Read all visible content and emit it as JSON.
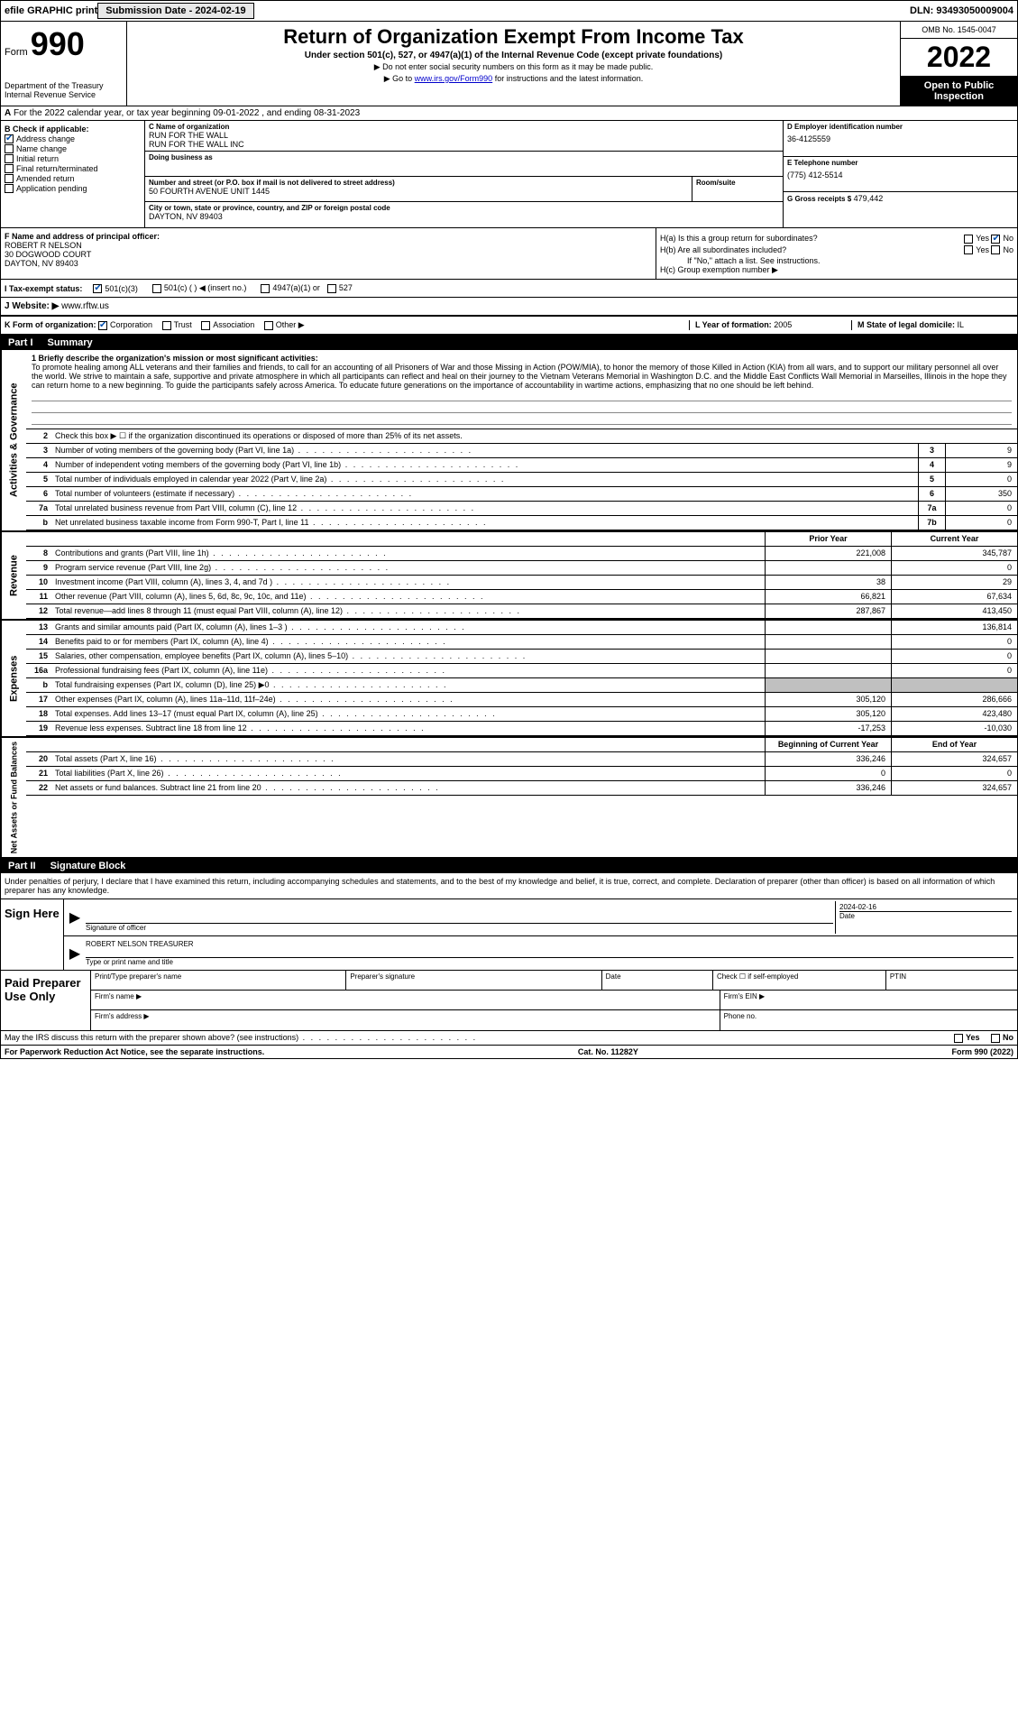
{
  "meta": {
    "dln": "DLN: 93493050009004",
    "submission_date_label": "Submission Date - 2024-02-19",
    "efile_label": "efile GRAPHIC print",
    "omb": "OMB No. 1545-0047",
    "tax_year": "2022",
    "open_public": "Open to Public Inspection",
    "form_label": "Form",
    "form_num": "990",
    "dept": "Department of the Treasury",
    "irs": "Internal Revenue Service",
    "title": "Return of Organization Exempt From Income Tax",
    "subtitle": "Under section 501(c), 527, or 4947(a)(1) of the Internal Revenue Code (except private foundations)",
    "note1": "▶ Do not enter social security numbers on this form as it may be made public.",
    "note2_prefix": "▶ Go to ",
    "note2_link": "www.irs.gov/Form990",
    "note2_suffix": " for instructions and the latest information."
  },
  "row_A": "For the 2022 calendar year, or tax year beginning 09-01-2022   , and ending 08-31-2023",
  "section_B": {
    "header": "B Check if applicable:",
    "items": [
      {
        "label": "Address change",
        "checked": true
      },
      {
        "label": "Name change",
        "checked": false
      },
      {
        "label": "Initial return",
        "checked": false
      },
      {
        "label": "Final return/terminated",
        "checked": false
      },
      {
        "label": "Amended return",
        "checked": false
      },
      {
        "label": "Application pending",
        "checked": false
      }
    ]
  },
  "section_C": {
    "name_label": "C Name of organization",
    "name1": "RUN FOR THE WALL",
    "name2": "RUN FOR THE WALL INC",
    "dba_label": "Doing business as",
    "dba": "",
    "street_label": "Number and street (or P.O. box if mail is not delivered to street address)",
    "street": "50 FOURTH AVENUE UNIT 1445",
    "room_label": "Room/suite",
    "room": "",
    "city_label": "City or town, state or province, country, and ZIP or foreign postal code",
    "city": "DAYTON, NV  89403"
  },
  "section_DE": {
    "d_label": "D Employer identification number",
    "d_value": "36-4125559",
    "e_label": "E Telephone number",
    "e_value": "(775) 412-5514",
    "g_label": "G Gross receipts $",
    "g_value": "479,442"
  },
  "section_F": {
    "label": "F  Name and address of principal officer:",
    "name": "ROBERT R NELSON",
    "addr1": "30 DOGWOOD COURT",
    "addr2": "DAYTON, NV  89403"
  },
  "section_H": {
    "ha_label": "H(a)  Is this a group return for subordinates?",
    "ha_yes": false,
    "ha_no": true,
    "hb_label": "H(b)  Are all subordinates included?",
    "hb_note": "If \"No,\" attach a list. See instructions.",
    "hc_label": "H(c)  Group exemption number ▶"
  },
  "row_I": {
    "label": "I  Tax-exempt status:",
    "opt_501c3": "501(c)(3)",
    "opt_501c": "501(c) (  ) ◀ (insert no.)",
    "opt_4947": "4947(a)(1) or",
    "opt_527": "527",
    "checked_501c3": true
  },
  "row_J": {
    "label": "J  Website: ▶",
    "value": "www.rftw.us"
  },
  "row_K": {
    "label": "K Form of organization:",
    "corp": "Corporation",
    "trust": "Trust",
    "assoc": "Association",
    "other": "Other ▶",
    "corp_checked": true
  },
  "row_L": {
    "label": "L Year of formation:",
    "value": "2005"
  },
  "row_M": {
    "label": "M State of legal domicile:",
    "value": "IL"
  },
  "part1": {
    "num": "Part I",
    "title": "Summary"
  },
  "governance": {
    "side": "Activities & Governance",
    "line1_label": "1   Briefly describe the organization's mission or most significant activities:",
    "mission": "To promote healing among ALL veterans and their families and friends, to call for an accounting of all Prisoners of War and those Missing in Action (POW/MIA), to honor the memory of those Killed in Action (KIA) from all wars, and to support our military personnel all over the world. We strive to maintain a safe, supportive and private atmosphere in which all participants can reflect and heal on their journey to the Vietnam Veterans Memorial in Washington D.C. and the Middle East Conflicts Wall Memorial in Marseilles, Illinois in the hope they can return home to a new beginning. To guide the participants safely across America. To educate future generations on the importance of accountability in wartime actions, emphasizing that no one should be left behind.",
    "line2": "Check this box ▶ ☐  if the organization discontinued its operations or disposed of more than 25% of its net assets.",
    "rows": [
      {
        "n": "3",
        "desc": "Number of voting members of the governing body (Part VI, line 1a)",
        "box": "3",
        "val": "9"
      },
      {
        "n": "4",
        "desc": "Number of independent voting members of the governing body (Part VI, line 1b)",
        "box": "4",
        "val": "9"
      },
      {
        "n": "5",
        "desc": "Total number of individuals employed in calendar year 2022 (Part V, line 2a)",
        "box": "5",
        "val": "0"
      },
      {
        "n": "6",
        "desc": "Total number of volunteers (estimate if necessary)",
        "box": "6",
        "val": "350"
      },
      {
        "n": "7a",
        "desc": "Total unrelated business revenue from Part VIII, column (C), line 12",
        "box": "7a",
        "val": "0"
      },
      {
        "n": "b",
        "desc": "Net unrelated business taxable income from Form 990-T, Part I, line 11",
        "box": "7b",
        "val": "0"
      }
    ]
  },
  "revenue": {
    "side": "Revenue",
    "header_prior": "Prior Year",
    "header_current": "Current Year",
    "rows": [
      {
        "n": "8",
        "desc": "Contributions and grants (Part VIII, line 1h)",
        "prior": "221,008",
        "current": "345,787"
      },
      {
        "n": "9",
        "desc": "Program service revenue (Part VIII, line 2g)",
        "prior": "",
        "current": "0"
      },
      {
        "n": "10",
        "desc": "Investment income (Part VIII, column (A), lines 3, 4, and 7d )",
        "prior": "38",
        "current": "29"
      },
      {
        "n": "11",
        "desc": "Other revenue (Part VIII, column (A), lines 5, 6d, 8c, 9c, 10c, and 11e)",
        "prior": "66,821",
        "current": "67,634"
      },
      {
        "n": "12",
        "desc": "Total revenue—add lines 8 through 11 (must equal Part VIII, column (A), line 12)",
        "prior": "287,867",
        "current": "413,450"
      }
    ]
  },
  "expenses": {
    "side": "Expenses",
    "rows": [
      {
        "n": "13",
        "desc": "Grants and similar amounts paid (Part IX, column (A), lines 1–3 )",
        "prior": "",
        "current": "136,814"
      },
      {
        "n": "14",
        "desc": "Benefits paid to or for members (Part IX, column (A), line 4)",
        "prior": "",
        "current": "0"
      },
      {
        "n": "15",
        "desc": "Salaries, other compensation, employee benefits (Part IX, column (A), lines 5–10)",
        "prior": "",
        "current": "0"
      },
      {
        "n": "16a",
        "desc": "Professional fundraising fees (Part IX, column (A), line 11e)",
        "prior": "",
        "current": "0"
      },
      {
        "n": "b",
        "desc": "Total fundraising expenses (Part IX, column (D), line 25) ▶0",
        "prior": "SHADED",
        "current": "SHADED"
      },
      {
        "n": "17",
        "desc": "Other expenses (Part IX, column (A), lines 11a–11d, 11f–24e)",
        "prior": "305,120",
        "current": "286,666"
      },
      {
        "n": "18",
        "desc": "Total expenses. Add lines 13–17 (must equal Part IX, column (A), line 25)",
        "prior": "305,120",
        "current": "423,480"
      },
      {
        "n": "19",
        "desc": "Revenue less expenses. Subtract line 18 from line 12",
        "prior": "-17,253",
        "current": "-10,030"
      }
    ]
  },
  "netassets": {
    "side": "Net Assets or Fund Balances",
    "header_prior": "Beginning of Current Year",
    "header_current": "End of Year",
    "rows": [
      {
        "n": "20",
        "desc": "Total assets (Part X, line 16)",
        "prior": "336,246",
        "current": "324,657"
      },
      {
        "n": "21",
        "desc": "Total liabilities (Part X, line 26)",
        "prior": "0",
        "current": "0"
      },
      {
        "n": "22",
        "desc": "Net assets or fund balances. Subtract line 21 from line 20",
        "prior": "336,246",
        "current": "324,657"
      }
    ]
  },
  "part2": {
    "num": "Part II",
    "title": "Signature Block",
    "declaration": "Under penalties of perjury, I declare that I have examined this return, including accompanying schedules and statements, and to the best of my knowledge and belief, it is true, correct, and complete. Declaration of preparer (other than officer) is based on all information of which preparer has any knowledge."
  },
  "sign": {
    "left": "Sign Here",
    "sig_label": "Signature of officer",
    "date_label": "Date",
    "date_value": "2024-02-16",
    "name_value": "ROBERT NELSON  TREASURER",
    "name_label": "Type or print name and title"
  },
  "preparer": {
    "left": "Paid Preparer Use Only",
    "h_name": "Print/Type preparer's name",
    "h_sig": "Preparer's signature",
    "h_date": "Date",
    "h_check": "Check ☐ if self-employed",
    "h_ptin": "PTIN",
    "firm_name": "Firm's name    ▶",
    "firm_ein": "Firm's EIN ▶",
    "firm_addr": "Firm's address ▶",
    "phone": "Phone no."
  },
  "footer": {
    "discuss": "May the IRS discuss this return with the preparer shown above? (see instructions)",
    "yes": "Yes",
    "no": "No",
    "paperwork": "For Paperwork Reduction Act Notice, see the separate instructions.",
    "cat": "Cat. No. 11282Y",
    "form": "Form 990 (2022)"
  }
}
